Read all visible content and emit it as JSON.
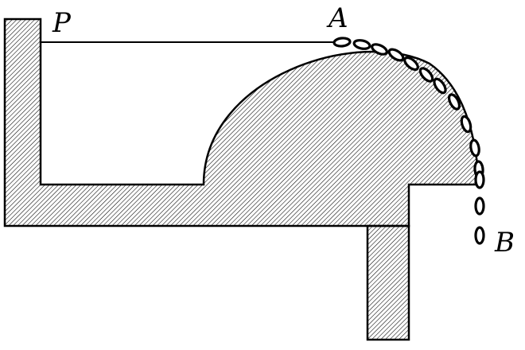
{
  "labels": {
    "p": "P",
    "a": "A",
    "b": "B"
  },
  "colors": {
    "stroke": "#000000",
    "hatch": "#000000",
    "background": "#ffffff"
  }
}
